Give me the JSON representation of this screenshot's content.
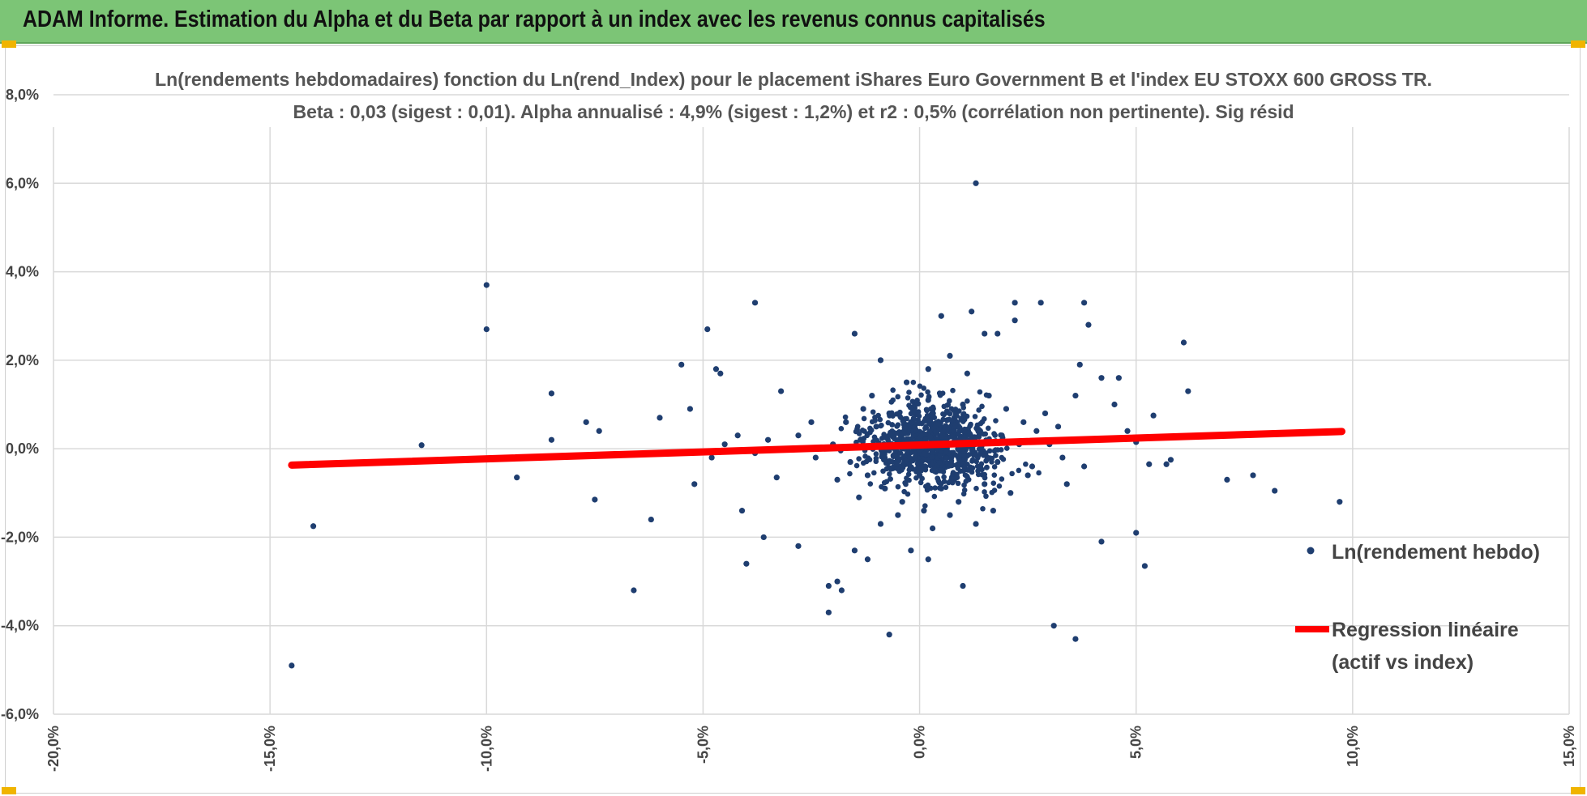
{
  "header": {
    "title": "ADAM Informe. Estimation du Alpha et du Beta par rapport à un index avec les revenus connus capitalisés"
  },
  "colors": {
    "header_bg": "#7cc576",
    "points": "#1f3e70",
    "regression": "#ff0000",
    "grid": "#d9d9d9",
    "corner_accent": "#f0b400"
  },
  "chart_data": {
    "type": "scatter",
    "title_lines": [
      "Ln(rendements hebdomadaires) fonction du Ln(rend_Index) pour le placement iShares Euro Government B et l'index EU STOXX 600 GROSS TR.",
      "Beta : 0,03 (sigest : 0,01). Alpha annualisé : 4,9% (sigest : 1,2%) et r2 : 0,5% (corrélation non pertinente). Sig résid"
    ],
    "xlim": [
      -0.2,
      0.15
    ],
    "ylim": [
      -0.06,
      0.08
    ],
    "x_ticks": [
      -0.2,
      -0.15,
      -0.1,
      -0.05,
      0.0,
      0.05,
      0.1,
      0.15
    ],
    "x_tick_labels": [
      "-20,0%",
      "-15,0%",
      "-10,0%",
      "-5,0%",
      "0,0%",
      "5,0%",
      "10,0%",
      "15,0%"
    ],
    "y_ticks": [
      -0.06,
      -0.04,
      -0.02,
      0.0,
      0.02,
      0.04,
      0.06,
      0.08
    ],
    "y_tick_labels": [
      "-6,0%",
      "-4,0%",
      "-2,0%",
      "0,0%",
      "2,0%",
      "4,0%",
      "6,0%",
      "8,0%"
    ],
    "grid": true,
    "legend_position": "right",
    "series": [
      {
        "name": "Ln(rendement hebdo)",
        "kind": "scatter",
        "points": [
          [
            -0.145,
            -0.049
          ],
          [
            -0.14,
            -0.0175
          ],
          [
            -0.115,
            0.0008
          ],
          [
            -0.1,
            0.037
          ],
          [
            -0.1,
            0.027
          ],
          [
            -0.093,
            -0.0065
          ],
          [
            -0.085,
            0.0125
          ],
          [
            -0.085,
            0.002
          ],
          [
            -0.075,
            -0.0115
          ],
          [
            -0.077,
            0.006
          ],
          [
            -0.074,
            0.004
          ],
          [
            -0.066,
            -0.032
          ],
          [
            -0.062,
            -0.016
          ],
          [
            -0.06,
            0.007
          ],
          [
            -0.055,
            0.019
          ],
          [
            -0.053,
            0.009
          ],
          [
            -0.052,
            -0.008
          ],
          [
            -0.049,
            0.027
          ],
          [
            -0.047,
            0.018
          ],
          [
            -0.046,
            0.017
          ],
          [
            -0.038,
            0.033
          ],
          [
            -0.041,
            -0.014
          ],
          [
            -0.04,
            -0.026
          ],
          [
            -0.036,
            -0.02
          ],
          [
            -0.033,
            -0.0065
          ],
          [
            -0.032,
            0.013
          ],
          [
            -0.028,
            -0.022
          ],
          [
            -0.021,
            -0.037
          ],
          [
            -0.021,
            -0.031
          ],
          [
            -0.019,
            -0.03
          ],
          [
            -0.018,
            -0.032
          ],
          [
            -0.015,
            -0.023
          ],
          [
            -0.012,
            -0.025
          ],
          [
            -0.007,
            -0.042
          ],
          [
            -0.005,
            -0.015
          ],
          [
            -0.002,
            -0.023
          ],
          [
            0.002,
            -0.025
          ],
          [
            0.01,
            -0.031
          ],
          [
            0.013,
            0.06
          ],
          [
            0.005,
            0.03
          ],
          [
            0.012,
            0.031
          ],
          [
            0.015,
            0.026
          ],
          [
            0.018,
            0.026
          ],
          [
            0.022,
            0.033
          ],
          [
            0.028,
            0.033
          ],
          [
            0.022,
            0.029
          ],
          [
            0.038,
            0.033
          ],
          [
            0.039,
            0.028
          ],
          [
            0.031,
            -0.04
          ],
          [
            0.036,
            -0.043
          ],
          [
            0.037,
            0.019
          ],
          [
            0.042,
            0.016
          ],
          [
            0.046,
            0.016
          ],
          [
            0.05,
            -0.019
          ],
          [
            0.052,
            -0.0265
          ],
          [
            0.053,
            -0.0035
          ],
          [
            0.057,
            -0.0035
          ],
          [
            0.061,
            0.024
          ],
          [
            0.062,
            0.013
          ],
          [
            0.071,
            -0.007
          ],
          [
            0.077,
            -0.006
          ],
          [
            0.082,
            -0.0095
          ],
          [
            0.097,
            -0.012
          ],
          [
            0.042,
            -0.021
          ],
          [
            0.036,
            0.012
          ],
          [
            0.045,
            0.01
          ],
          [
            0.048,
            0.004
          ],
          [
            0.05,
            0.0015
          ],
          [
            0.054,
            0.0075
          ],
          [
            0.058,
            -0.0025
          ],
          [
            -0.025,
            0.006
          ],
          [
            -0.01,
            0.005
          ],
          [
            -0.013,
            0.009
          ],
          [
            -0.015,
            0.026
          ],
          [
            -0.009,
            0.02
          ],
          [
            -0.003,
            0.015
          ],
          [
            0.002,
            0.018
          ],
          [
            0.007,
            0.021
          ],
          [
            0.011,
            0.017
          ],
          [
            0.016,
            0.012
          ],
          [
            0.02,
            0.009
          ],
          [
            0.024,
            0.006
          ],
          [
            0.027,
            0.004
          ],
          [
            0.03,
            0.001
          ],
          [
            0.033,
            -0.002
          ],
          [
            0.025,
            -0.006
          ],
          [
            0.021,
            -0.01
          ],
          [
            0.017,
            -0.014
          ],
          [
            0.013,
            -0.017
          ],
          [
            0.009,
            -0.012
          ],
          [
            0.005,
            -0.009
          ],
          [
            0.001,
            -0.014
          ],
          [
            -0.004,
            -0.012
          ],
          [
            -0.008,
            -0.009
          ],
          [
            -0.012,
            -0.006
          ],
          [
            -0.016,
            -0.003
          ],
          [
            -0.02,
            0.001
          ],
          [
            -0.024,
            -0.002
          ],
          [
            -0.028,
            0.003
          ],
          [
            -0.031,
            0.0
          ],
          [
            -0.035,
            0.002
          ],
          [
            -0.038,
            -0.001
          ],
          [
            -0.042,
            0.003
          ],
          [
            -0.045,
            0.001
          ],
          [
            -0.048,
            -0.002
          ],
          [
            -0.006,
            0.003
          ],
          [
            -0.002,
            0.006
          ],
          [
            0.003,
            0.004
          ],
          [
            0.006,
            0.001
          ],
          [
            0.009,
            -0.002
          ],
          [
            0.012,
            0.002
          ],
          [
            0.004,
            -0.004
          ],
          [
            0.0,
            -0.006
          ],
          [
            -0.003,
            -0.002
          ],
          [
            0.008,
            0.007
          ],
          [
            0.014,
            0.004
          ],
          [
            0.018,
            -0.003
          ],
          [
            0.01,
            0.01
          ],
          [
            0.002,
            0.011
          ],
          [
            -0.007,
            0.008
          ],
          [
            -0.011,
            0.012
          ],
          [
            -0.017,
            0.006
          ],
          [
            -0.019,
            -0.007
          ],
          [
            -0.014,
            -0.011
          ],
          [
            -0.009,
            -0.017
          ],
          [
            0.003,
            -0.018
          ],
          [
            0.007,
            -0.015
          ],
          [
            0.015,
            -0.008
          ],
          [
            0.019,
            0.003
          ],
          [
            0.023,
            0.001
          ],
          [
            0.026,
            -0.004
          ],
          [
            0.029,
            0.008
          ],
          [
            0.032,
            0.005
          ],
          [
            0.034,
            -0.008
          ],
          [
            0.038,
            -0.004
          ]
        ]
      },
      {
        "name": "Regression linéaire (actif vs index)",
        "kind": "line",
        "x": [
          -0.145,
          0.0975
        ],
        "y": [
          -0.0037,
          0.0039
        ]
      }
    ]
  },
  "legend": {
    "scatter_label": "Ln(rendement hebdo)",
    "line_label_1": "Regression linéaire",
    "line_label_2": "(actif vs index)"
  }
}
